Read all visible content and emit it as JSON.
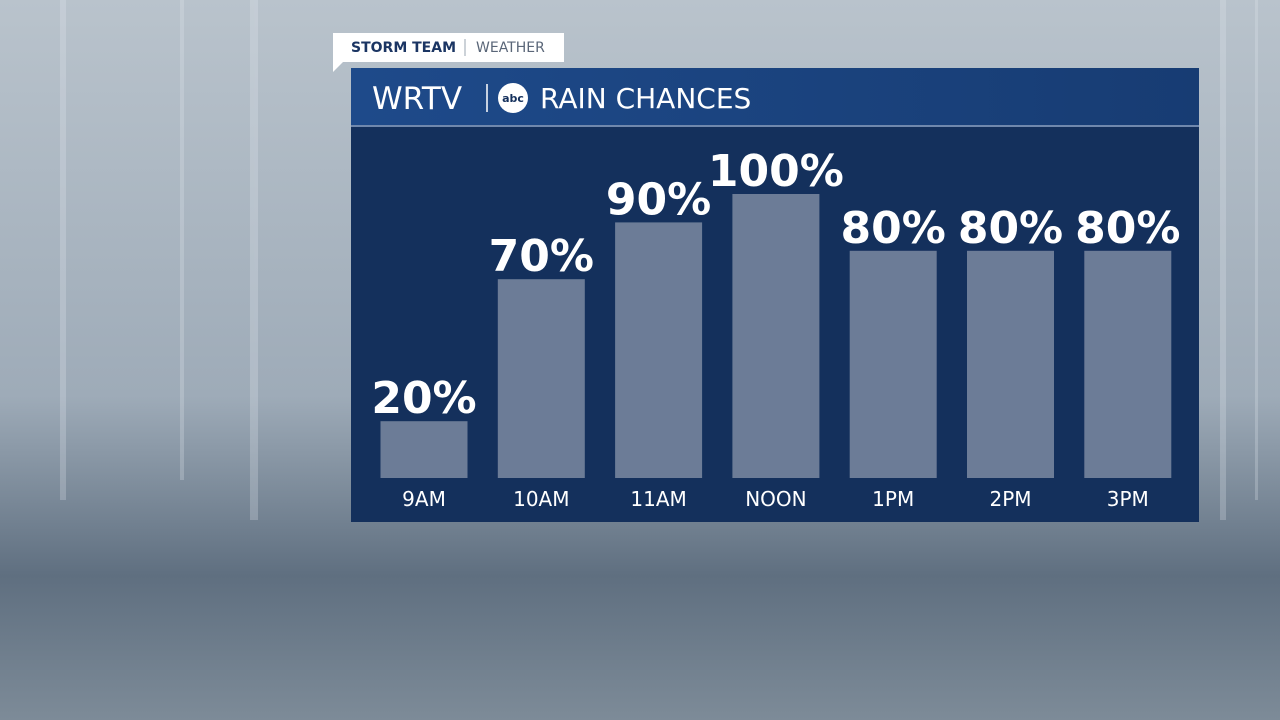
{
  "branding": {
    "team": "STORM TEAM",
    "section": "WEATHER",
    "station": "WRTV",
    "network": "abc"
  },
  "chart_data": {
    "type": "bar",
    "title": "RAIN CHANCES",
    "categories": [
      "9AM",
      "10AM",
      "11AM",
      "NOON",
      "1PM",
      "2PM",
      "3PM"
    ],
    "values": [
      20,
      70,
      90,
      100,
      80,
      80,
      80
    ],
    "value_labels": [
      "20%",
      "70%",
      "90%",
      "100%",
      "80%",
      "80%",
      "80%"
    ],
    "color": "#6c7c97"
  }
}
